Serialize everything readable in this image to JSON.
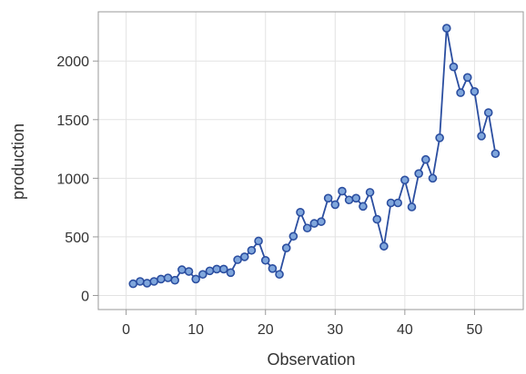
{
  "chart_data": {
    "type": "line",
    "title": "",
    "xlabel": "Observation",
    "ylabel": "production",
    "xlim": [
      -4,
      57
    ],
    "ylim": [
      -120,
      2420
    ],
    "xticks": [
      0,
      10,
      20,
      30,
      40,
      50
    ],
    "yticks": [
      0,
      500,
      1000,
      1500,
      2000
    ],
    "grid": true,
    "legend": "none",
    "colors": {
      "line": "#2b4ea0",
      "marker_fill": "#7fa6dc",
      "grid": "#e3e3e3",
      "frame": "#9a9a9a"
    },
    "markers": "circle",
    "series": [
      {
        "x": [
          1,
          2,
          3,
          4,
          5,
          6,
          7,
          8,
          9,
          10,
          11,
          12,
          13,
          14,
          15,
          16,
          17,
          18,
          19,
          20,
          21,
          22,
          23,
          24,
          25,
          26,
          27,
          28,
          29,
          30,
          31,
          32,
          33,
          34,
          35,
          36,
          37,
          38,
          39,
          40,
          41,
          42,
          43,
          44,
          45,
          46,
          47,
          48,
          49,
          50,
          51,
          52,
          53
        ],
        "values": [
          100,
          120,
          105,
          120,
          140,
          150,
          130,
          220,
          205,
          140,
          180,
          210,
          225,
          225,
          195,
          305,
          330,
          385,
          465,
          300,
          230,
          180,
          405,
          505,
          710,
          575,
          615,
          630,
          830,
          775,
          890,
          815,
          830,
          760,
          880,
          650,
          420,
          790,
          790,
          985,
          755,
          1040,
          1160,
          1000,
          1345,
          2280,
          1950,
          1730,
          1860,
          1740,
          1360,
          1560,
          1210
        ]
      }
    ]
  }
}
